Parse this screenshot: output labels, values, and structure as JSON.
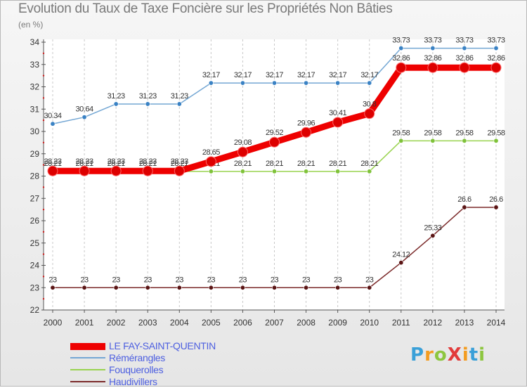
{
  "title": "Evolution du Taux de Taxe Foncière sur les Propriétés Non Bâties",
  "unit_label": "(en %)",
  "logo": {
    "text": "ProXiti",
    "letters": [
      "P",
      "r",
      "o",
      "X",
      "i",
      "t",
      "i"
    ],
    "colors": [
      "#3aa0d8",
      "#f39c20",
      "#8dc63f",
      "#e23b3b",
      "#f39c20",
      "#3aa0d8",
      "#8dc63f"
    ]
  },
  "chart_data": {
    "type": "line",
    "title": "Evolution du Taux de Taxe Foncière sur les Propriétés Non Bâties",
    "ylabel": "(en %)",
    "xlabel": "",
    "x": [
      "2000",
      "2001",
      "2002",
      "2003",
      "2004",
      "2005",
      "2006",
      "2007",
      "2008",
      "2009",
      "2010",
      "2011",
      "2012",
      "2013",
      "2014"
    ],
    "ylim": [
      22,
      34
    ],
    "yticks": [
      "22",
      "23",
      "24",
      "25",
      "26",
      "27",
      "28",
      "29",
      "30",
      "31",
      "32",
      "33",
      "34"
    ],
    "grid": "vertical dashed",
    "legend_position": "bottom-left",
    "series": [
      {
        "name": "Haudivillers",
        "color": "#7b2a2a",
        "dot": "#5a1414",
        "values": [
          23,
          23,
          23,
          23,
          23,
          23,
          23,
          23,
          23,
          23,
          23,
          24.12,
          25.33,
          26.6,
          26.6
        ],
        "labels": [
          "23",
          "23",
          "23",
          "23",
          "23",
          "23",
          "23",
          "23",
          "23",
          "23",
          "23",
          "24.12",
          "25.33",
          "26.6",
          "26.6"
        ]
      },
      {
        "name": "Fouquerolles",
        "color": "#99d34f",
        "dot": "#7fc23a",
        "values": [
          28.21,
          28.21,
          28.21,
          28.21,
          28.21,
          28.21,
          28.21,
          28.21,
          28.21,
          28.21,
          28.21,
          29.58,
          29.58,
          29.58,
          29.58
        ],
        "labels": [
          "28.21",
          "28.21",
          "28.21",
          "28.21",
          "28.21",
          "28.21",
          "28.21",
          "28.21",
          "28.21",
          "28.21",
          "28.21",
          "29.58",
          "29.58",
          "29.58",
          "29.58"
        ]
      },
      {
        "name": "Rémérangles",
        "color": "#74a7d4",
        "dot": "#3a82c4",
        "values": [
          30.34,
          30.64,
          31.23,
          31.23,
          31.23,
          32.17,
          32.17,
          32.17,
          32.17,
          32.17,
          32.17,
          33.73,
          33.73,
          33.73,
          33.73
        ],
        "labels": [
          "30.34",
          "30.64",
          "31.23",
          "31.23",
          "31.23",
          "32.17",
          "32.17",
          "32.17",
          "32.17",
          "32.17",
          "32.17",
          "33.73",
          "33.73",
          "33.73",
          "33.73"
        ]
      },
      {
        "name": "LE FAY-SAINT-QUENTIN",
        "color": "#ee0000",
        "dot": "#dd0000",
        "values": [
          28.23,
          28.23,
          28.23,
          28.23,
          28.23,
          28.65,
          29.08,
          29.52,
          29.96,
          30.41,
          30.8,
          32.86,
          32.86,
          32.86,
          32.86
        ],
        "labels": [
          "28.23",
          "28.23",
          "28.23",
          "28.23",
          "28.23",
          "28.65",
          "29.08",
          "29.52",
          "29.96",
          "30.41",
          "30.8",
          "32.86",
          "32.86",
          "32.86",
          "32.86"
        ]
      }
    ],
    "legend": [
      "LE FAY-SAINT-QUENTIN",
      "Rémérangles",
      "Fouquerolles",
      "Haudivillers"
    ]
  }
}
